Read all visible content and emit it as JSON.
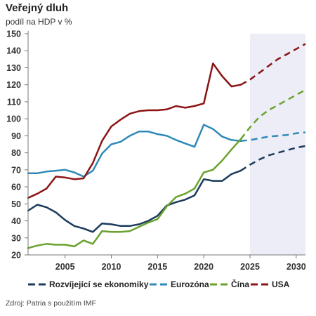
{
  "header": {
    "title": "Veřejný dluh",
    "subtitle": "podíl na HDP v %"
  },
  "footer": {
    "source": "Zdroj: Patria s použitím IMF"
  },
  "colors": {
    "forecast_shade": "#ecedf7",
    "axis": "#777777"
  },
  "chart_data": {
    "type": "line",
    "title": "Veřejný dluh",
    "subtitle": "podíl na HDP v %",
    "xlabel": "",
    "ylabel": "",
    "xlim": [
      2001,
      2031
    ],
    "ylim": [
      20,
      150
    ],
    "x_ticks": [
      2005,
      2010,
      2015,
      2020,
      2025,
      2030
    ],
    "y_ticks": [
      20,
      30,
      40,
      50,
      60,
      70,
      80,
      90,
      100,
      110,
      120,
      130,
      140,
      150
    ],
    "forecast_from": 2024,
    "shaded_region": [
      2025,
      2031
    ],
    "legend_position": "bottom",
    "grid": false,
    "series": [
      {
        "name": "Rozvíjející se ekonomiky",
        "color": "#1b3a5c",
        "x": [
          2001,
          2002,
          2003,
          2004,
          2005,
          2006,
          2007,
          2008,
          2009,
          2010,
          2011,
          2012,
          2013,
          2014,
          2015,
          2016,
          2017,
          2018,
          2019,
          2020,
          2021,
          2022,
          2023,
          2024,
          2025,
          2026,
          2027,
          2028,
          2029,
          2030,
          2031
        ],
        "values": [
          46,
          49.5,
          48,
          45,
          40.5,
          37,
          35.5,
          33.5,
          38.5,
          38,
          37,
          37,
          38,
          40,
          43,
          49,
          51,
          52.5,
          55,
          64.5,
          63.5,
          63.5,
          67.5,
          69.5,
          73,
          76,
          78.5,
          80,
          81.5,
          83,
          84
        ]
      },
      {
        "name": "Eurozóna",
        "color": "#2e8ab8",
        "x": [
          2001,
          2002,
          2003,
          2004,
          2005,
          2006,
          2007,
          2008,
          2009,
          2010,
          2011,
          2012,
          2013,
          2014,
          2015,
          2016,
          2017,
          2018,
          2019,
          2020,
          2021,
          2022,
          2023,
          2024,
          2025,
          2026,
          2027,
          2028,
          2029,
          2030,
          2031
        ],
        "values": [
          68,
          68,
          69,
          69.5,
          70,
          68.5,
          66,
          69.5,
          79.5,
          85,
          86.5,
          90,
          92.5,
          92.5,
          91,
          90,
          87.5,
          85.5,
          83.5,
          96.5,
          94,
          89.5,
          87.5,
          87,
          87.5,
          88.5,
          89.5,
          90,
          90.5,
          91.5,
          92
        ]
      },
      {
        "name": "Čína",
        "color": "#6aa22d",
        "x": [
          2001,
          2002,
          2003,
          2004,
          2005,
          2006,
          2007,
          2008,
          2009,
          2010,
          2011,
          2012,
          2013,
          2014,
          2015,
          2016,
          2017,
          2018,
          2019,
          2020,
          2021,
          2022,
          2023,
          2024,
          2025,
          2026,
          2027,
          2028,
          2029,
          2030,
          2031
        ],
        "values": [
          24,
          25.5,
          26.5,
          26,
          26,
          25,
          28.5,
          26.5,
          34,
          33.5,
          33.5,
          34,
          36.5,
          39,
          41,
          48.5,
          54,
          56,
          59,
          68.5,
          70,
          75.5,
          82,
          88,
          95,
          101,
          105,
          108,
          111,
          114,
          117
        ]
      },
      {
        "name": "USA",
        "color": "#8b1414",
        "x": [
          2001,
          2002,
          2003,
          2004,
          2005,
          2006,
          2007,
          2008,
          2009,
          2010,
          2011,
          2012,
          2013,
          2014,
          2015,
          2016,
          2017,
          2018,
          2019,
          2020,
          2021,
          2022,
          2023,
          2024,
          2025,
          2026,
          2027,
          2028,
          2029,
          2030,
          2031
        ],
        "values": [
          53.5,
          56,
          59,
          66,
          65.5,
          64.5,
          65,
          74,
          87,
          95.5,
          99.5,
          103,
          104.5,
          105,
          105,
          105.5,
          107.5,
          106.5,
          107.5,
          109,
          132.5,
          125,
          119,
          120,
          123,
          127,
          131,
          135,
          138,
          141,
          144
        ]
      }
    ]
  }
}
